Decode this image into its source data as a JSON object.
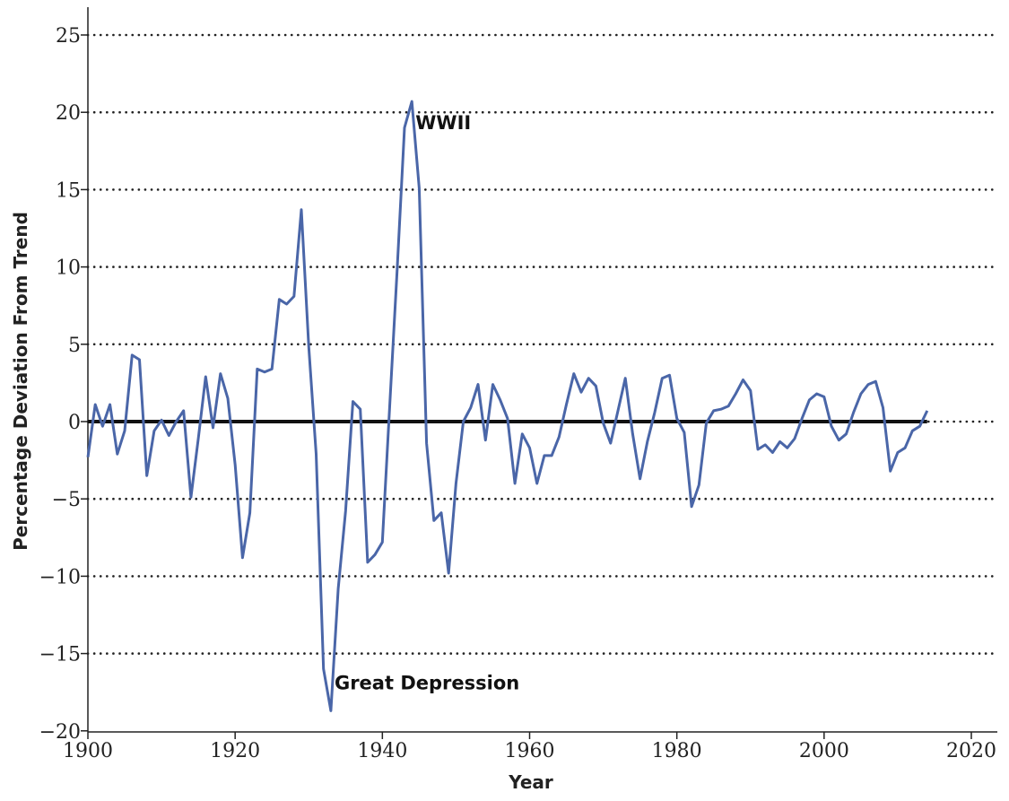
{
  "chart_data": {
    "type": "line",
    "title": "",
    "xlabel": "Year",
    "ylabel": "Percentage Deviation From Trend",
    "xlim": [
      1900,
      2020
    ],
    "ylim": [
      -20,
      25
    ],
    "x_ticks": [
      1900,
      1920,
      1940,
      1960,
      1980,
      2000,
      2020
    ],
    "y_ticks": [
      -20,
      -15,
      -10,
      -5,
      0,
      5,
      10,
      15,
      20,
      25
    ],
    "y_tick_labels": [
      "−20",
      "−15",
      "−10",
      "−5",
      "0",
      "5",
      "10",
      "15",
      "20",
      "25"
    ],
    "grid": "horizontal dotted",
    "zero_line": true,
    "line_color": "#4a66a8",
    "series": [
      {
        "x": [
          1900,
          1901,
          1902,
          1903,
          1904,
          1905,
          1906,
          1907,
          1908,
          1909,
          1910,
          1911,
          1912,
          1913,
          1914,
          1915,
          1916,
          1917,
          1918,
          1919,
          1920,
          1921,
          1922,
          1923,
          1924,
          1925,
          1926,
          1927,
          1928,
          1929,
          1930,
          1931,
          1932,
          1933,
          1934,
          1935,
          1936,
          1937,
          1938,
          1939,
          1940,
          1941,
          1942,
          1943,
          1944,
          1945,
          1946,
          1947,
          1948,
          1949,
          1950,
          1951,
          1952,
          1953,
          1954,
          1955,
          1956,
          1957,
          1958,
          1959,
          1960,
          1961,
          1962,
          1963,
          1964,
          1965,
          1966,
          1967,
          1968,
          1969,
          1970,
          1971,
          1972,
          1973,
          1974,
          1975,
          1976,
          1977,
          1978,
          1979,
          1980,
          1981,
          1982,
          1983,
          1984,
          1985,
          1986,
          1987,
          1988,
          1989,
          1990,
          1991,
          1992,
          1993,
          1994,
          1995,
          1996,
          1997,
          1998,
          1999,
          2000,
          2001,
          2002,
          2003,
          2004,
          2005,
          2006,
          2007,
          2008,
          2009,
          2010,
          2011,
          2012,
          2013,
          2014
        ],
        "y": [
          -2.3,
          1.1,
          -0.3,
          1.1,
          -2.1,
          -0.6,
          4.3,
          4.0,
          -3.5,
          -0.6,
          0.1,
          -0.9,
          0.0,
          0.7,
          -4.9,
          -1.1,
          2.9,
          -0.4,
          3.1,
          1.5,
          -2.8,
          -8.8,
          -5.9,
          3.4,
          3.2,
          3.4,
          7.9,
          7.6,
          8.1,
          13.7,
          4.8,
          -2.1,
          -16.0,
          -18.7,
          -10.8,
          -5.8,
          1.3,
          0.8,
          -9.1,
          -8.6,
          -7.8,
          1.0,
          9.8,
          19.0,
          20.7,
          15.1,
          -1.4,
          -6.4,
          -5.9,
          -9.8,
          -4.0,
          0.0,
          0.9,
          2.4,
          -1.2,
          2.4,
          1.4,
          0.2,
          -4.0,
          -0.8,
          -1.7,
          -4.0,
          -2.2,
          -2.2,
          -1.0,
          1.1,
          3.1,
          1.9,
          2.8,
          2.3,
          -0.1,
          -1.4,
          0.7,
          2.8,
          -0.8,
          -3.7,
          -1.3,
          0.6,
          2.8,
          3.0,
          0.2,
          -0.7,
          -5.5,
          -4.1,
          -0.1,
          0.7,
          0.8,
          1.0,
          1.8,
          2.7,
          2.0,
          -1.8,
          -1.5,
          -2.0,
          -1.3,
          -1.7,
          -1.1,
          0.2,
          1.4,
          1.8,
          1.6,
          -0.3,
          -1.2,
          -0.8,
          0.6,
          1.8,
          2.4,
          2.6,
          0.9,
          -3.2,
          -2.0,
          -1.7,
          -0.6,
          -0.3,
          0.7
        ]
      }
    ],
    "annotations": [
      {
        "text": "WWII",
        "x": 1944.5,
        "y": 18.9
      },
      {
        "text": "Great Depression",
        "x": 1933.5,
        "y": -17.3
      }
    ]
  }
}
